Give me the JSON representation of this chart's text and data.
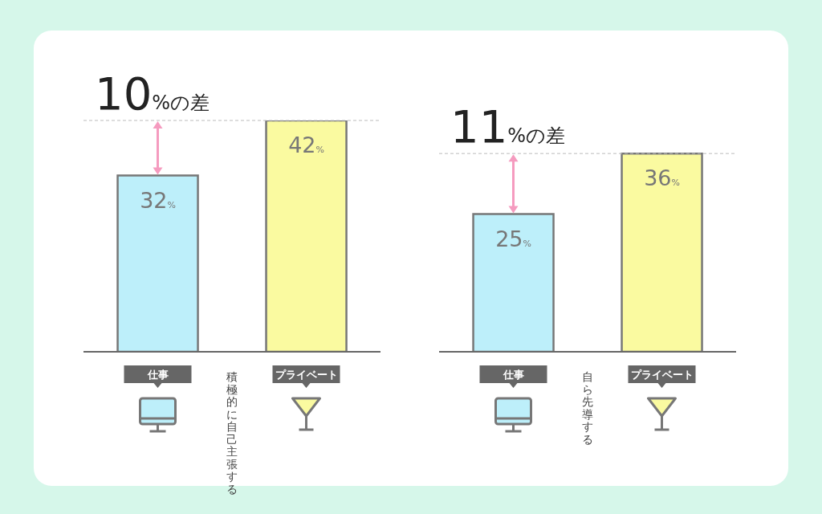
{
  "chart_data": [
    {
      "type": "bar",
      "categories": [
        "仕事",
        "プライベート"
      ],
      "values": [
        32,
        42
      ],
      "colors": [
        "#bdeffa",
        "#fafaa0"
      ],
      "value_labels": [
        "32%",
        "42%"
      ],
      "xlabel": "積極的に自己主張する",
      "annotations": [
        "10%の差"
      ],
      "ref_lines": [
        {
          "axis": "y",
          "value": 42,
          "line_style": "dashed",
          "color": "#bbbbbb"
        }
      ],
      "relative": false
    },
    {
      "type": "bar",
      "categories": [
        "仕事",
        "プライベート"
      ],
      "values": [
        25,
        36
      ],
      "colors": [
        "#bdeffa",
        "#fafaa0"
      ],
      "value_labels": [
        "25%",
        "36%"
      ],
      "xlabel": "自ら先導する",
      "annotations": [
        "11%の差"
      ],
      "ref_lines": [
        {
          "axis": "y",
          "value": 36,
          "line_style": "dashed",
          "color": "#bbbbbb"
        }
      ],
      "relative": false
    }
  ]
}
